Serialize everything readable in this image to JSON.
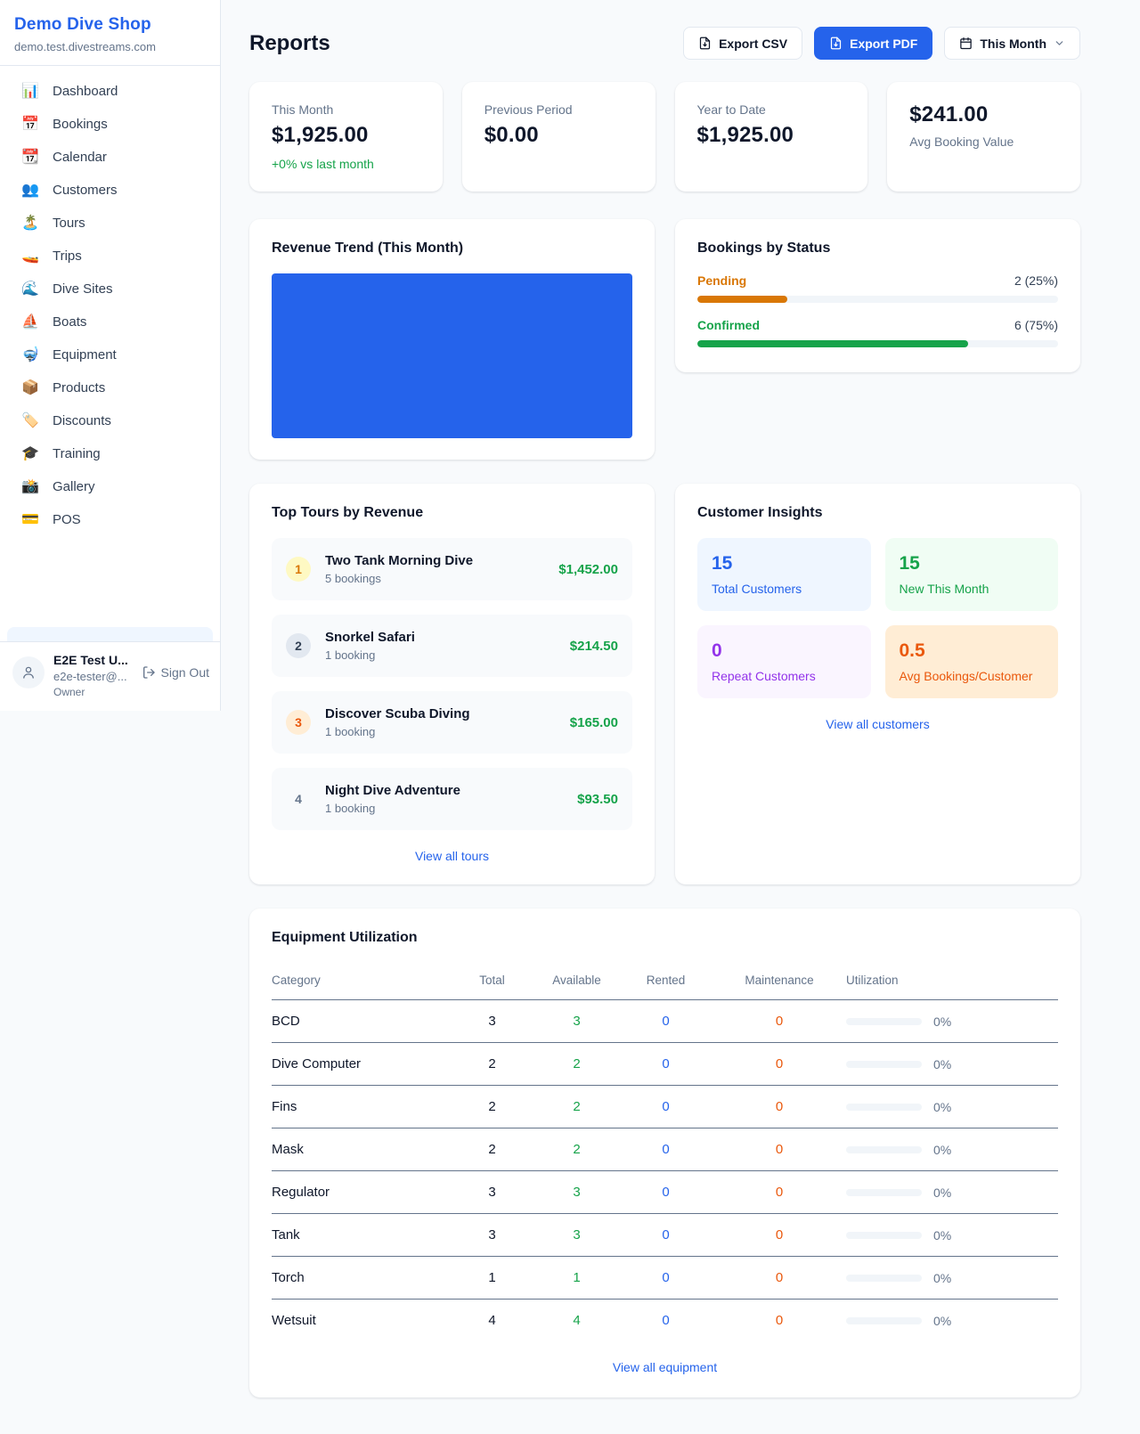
{
  "colors": {
    "accent_blue": "#2563eb",
    "green": "#16a34a",
    "pending_orange": "#d97706",
    "maintenance_orange": "#ea580c",
    "purple": "#9333ea",
    "page_bg": "#f8fafc"
  },
  "sidebar": {
    "title": "Demo Dive Shop",
    "subdomain": "demo.test.divestreams.com",
    "items": [
      {
        "icon": "📊",
        "label": "Dashboard"
      },
      {
        "icon": "📅",
        "label": "Bookings"
      },
      {
        "icon": "📆",
        "label": "Calendar"
      },
      {
        "icon": "👥",
        "label": "Customers"
      },
      {
        "icon": "🏝️",
        "label": "Tours"
      },
      {
        "icon": "🚤",
        "label": "Trips"
      },
      {
        "icon": "🌊",
        "label": "Dive Sites"
      },
      {
        "icon": "⛵",
        "label": "Boats"
      },
      {
        "icon": "🤿",
        "label": "Equipment"
      },
      {
        "icon": "📦",
        "label": "Products"
      },
      {
        "icon": "🏷️",
        "label": "Discounts"
      },
      {
        "icon": "🎓",
        "label": "Training"
      },
      {
        "icon": "📸",
        "label": "Gallery"
      },
      {
        "icon": "💳",
        "label": "POS"
      }
    ],
    "user": {
      "name": "E2E Test U...",
      "email": "e2e-tester@...",
      "role": "Owner",
      "sign_out": "Sign Out"
    }
  },
  "header": {
    "title": "Reports",
    "export_csv": "Export CSV",
    "export_pdf": "Export PDF",
    "period": "This Month"
  },
  "stats": [
    {
      "label": "This Month",
      "value": "$1,925.00",
      "delta": "+0% vs last month"
    },
    {
      "label": "Previous Period",
      "value": "$0.00"
    },
    {
      "label": "Year to Date",
      "value": "$1,925.00"
    },
    {
      "label": "Avg Booking Value",
      "value": "$241.00"
    }
  ],
  "revenue_trend": {
    "title": "Revenue Trend (This Month)"
  },
  "chart_data": {
    "type": "bar",
    "title": "Revenue Trend (This Month)",
    "categories": [
      "This Month"
    ],
    "values": [
      1925.0
    ],
    "bar_color": "#2563eb",
    "note": "single full-width solid bar, no axes or labels visible"
  },
  "bookings_by_status": {
    "title": "Bookings by Status",
    "rows": [
      {
        "label": "Pending",
        "value": "2 (25%)",
        "pct": 25
      },
      {
        "label": "Confirmed",
        "value": "6 (75%)",
        "pct": 75
      }
    ]
  },
  "top_tours": {
    "title": "Top Tours by Revenue",
    "items": [
      {
        "rank": "1",
        "name": "Two Tank Morning Dive",
        "bookings": "5 bookings",
        "revenue": "$1,452.00"
      },
      {
        "rank": "2",
        "name": "Snorkel Safari",
        "bookings": "1 booking",
        "revenue": "$214.50"
      },
      {
        "rank": "3",
        "name": "Discover Scuba Diving",
        "bookings": "1 booking",
        "revenue": "$165.00"
      },
      {
        "rank": "4",
        "name": "Night Dive Adventure",
        "bookings": "1 booking",
        "revenue": "$93.50"
      }
    ],
    "view_all": "View all tours"
  },
  "customer_insights": {
    "title": "Customer Insights",
    "cards": [
      {
        "value": "15",
        "label": "Total Customers",
        "theme": "blue"
      },
      {
        "value": "15",
        "label": "New This Month",
        "theme": "green"
      },
      {
        "value": "0",
        "label": "Repeat Customers",
        "theme": "purple"
      },
      {
        "value": "0.5",
        "label": "Avg Bookings/Customer",
        "theme": "orange"
      }
    ],
    "view_all": "View all customers"
  },
  "equipment": {
    "title": "Equipment Utilization",
    "columns": [
      "Category",
      "Total",
      "Available",
      "Rented",
      "Maintenance",
      "Utilization"
    ],
    "rows": [
      {
        "category": "BCD",
        "total": "3",
        "available": "3",
        "rented": "0",
        "maintenance": "0",
        "utilization": "0%"
      },
      {
        "category": "Dive Computer",
        "total": "2",
        "available": "2",
        "rented": "0",
        "maintenance": "0",
        "utilization": "0%"
      },
      {
        "category": "Fins",
        "total": "2",
        "available": "2",
        "rented": "0",
        "maintenance": "0",
        "utilization": "0%"
      },
      {
        "category": "Mask",
        "total": "2",
        "available": "2",
        "rented": "0",
        "maintenance": "0",
        "utilization": "0%"
      },
      {
        "category": "Regulator",
        "total": "3",
        "available": "3",
        "rented": "0",
        "maintenance": "0",
        "utilization": "0%"
      },
      {
        "category": "Tank",
        "total": "3",
        "available": "3",
        "rented": "0",
        "maintenance": "0",
        "utilization": "0%"
      },
      {
        "category": "Torch",
        "total": "1",
        "available": "1",
        "rented": "0",
        "maintenance": "0",
        "utilization": "0%"
      },
      {
        "category": "Wetsuit",
        "total": "4",
        "available": "4",
        "rented": "0",
        "maintenance": "0",
        "utilization": "0%"
      }
    ],
    "view_all": "View all equipment"
  }
}
